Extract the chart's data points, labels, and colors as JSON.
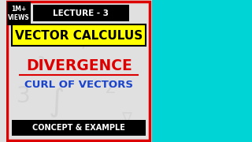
{
  "bg_color": "#e0e0e0",
  "right_bg_color": "#00d4d4",
  "title_box_color": "#000000",
  "title_text": "LECTURE - 3",
  "title_text_color": "#ffffff",
  "subject_box_color": "#ffff00",
  "subject_text": "VECTOR CALCULUS",
  "subject_text_color": "#000000",
  "div_text": "DIVERGENCE",
  "div_text_color": "#dd0000",
  "curl_text": "CURL OF VECTORS",
  "curl_text_color": "#1a44cc",
  "bottom_box_color": "#000000",
  "bottom_text": "CONCEPT & EXAMPLE",
  "bottom_text_color": "#ffffff",
  "views_text": "1M+\nVIEWS",
  "views_text_color": "#ffffff",
  "views_bg_color": "#000000",
  "red_border_color": "#dd0000",
  "divider_color": "#dd0000"
}
